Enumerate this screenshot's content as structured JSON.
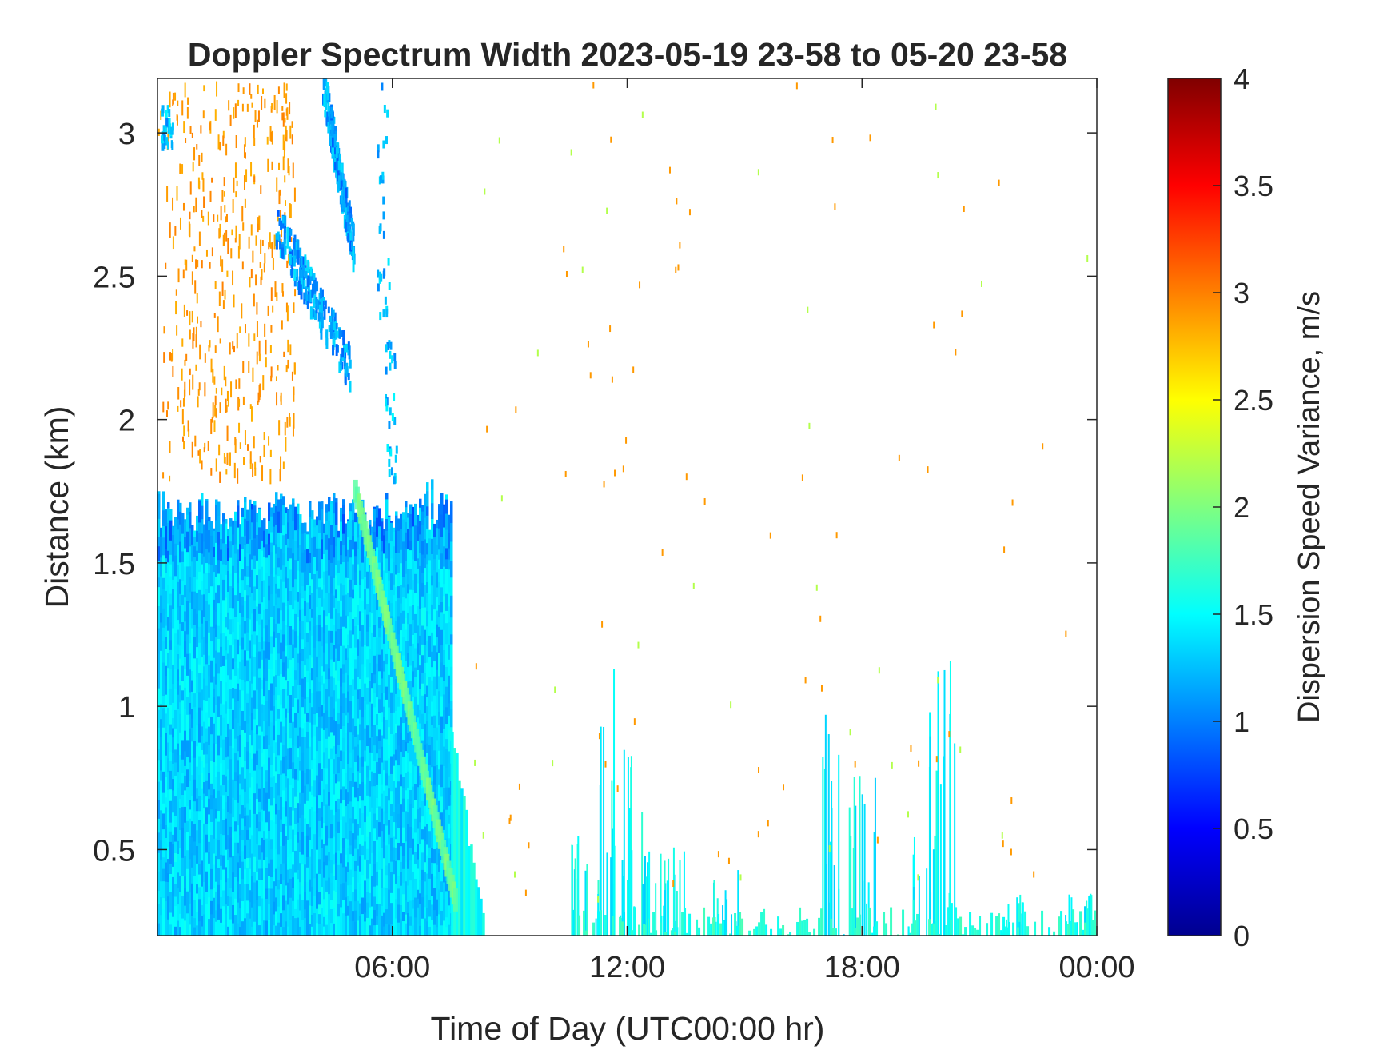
{
  "chart_data": {
    "type": "heatmap",
    "title": "Doppler Spectrum Width 2023-05-19 23-58 to 05-20 23-58",
    "xlabel": "Time of Day (UTC00:00 hr)",
    "ylabel": "Distance (km)",
    "colorbar_label": "Dispersion Speed Variance, m/s",
    "xlim": [
      0,
      24
    ],
    "ylim": [
      0.2,
      3.19
    ],
    "clim": [
      0,
      4
    ],
    "colormap": "jet",
    "grid": false,
    "x_ticks": [
      {
        "value": 6,
        "label": "06:00"
      },
      {
        "value": 12,
        "label": "12:00"
      },
      {
        "value": 18,
        "label": "18:00"
      },
      {
        "value": 24,
        "label": "00:00"
      }
    ],
    "y_ticks": [
      {
        "value": 0.5,
        "label": "0.5"
      },
      {
        "value": 1.0,
        "label": "1"
      },
      {
        "value": 1.5,
        "label": "1.5"
      },
      {
        "value": 2.0,
        "label": "2"
      },
      {
        "value": 2.5,
        "label": "2.5"
      },
      {
        "value": 3.0,
        "label": "3"
      }
    ],
    "colorbar_ticks": [
      {
        "value": 0,
        "label": "0"
      },
      {
        "value": 0.5,
        "label": "0.5"
      },
      {
        "value": 1,
        "label": "1"
      },
      {
        "value": 1.5,
        "label": "1.5"
      },
      {
        "value": 2,
        "label": "2"
      },
      {
        "value": 2.5,
        "label": "2.5"
      },
      {
        "value": 3,
        "label": "3"
      },
      {
        "value": 3.5,
        "label": "3.5"
      },
      {
        "value": 4,
        "label": "4"
      }
    ],
    "regions": [
      {
        "name": "boundary-layer-echo",
        "t_start": 0,
        "t_end": 7.5,
        "z_min": 0.2,
        "z_max": 1.75,
        "value": 1.3
      },
      {
        "name": "boundary-layer-tail",
        "t_start": 7.5,
        "t_end": 8.3,
        "z_min": 0.2,
        "z_max": 0.9,
        "value": 1.4
      },
      {
        "name": "sheared-band",
        "t_start": 5.0,
        "t_end": 7.6,
        "z_top": 1.75,
        "z_bottom": 0.3,
        "value": 1.8
      },
      {
        "name": "upper-speckle",
        "t_start": 0,
        "t_end": 3.5,
        "z_min": 1.8,
        "z_max": 3.19,
        "value": 3.0
      },
      {
        "name": "cloud-streak-1",
        "t_start": 4.2,
        "t_end": 5.0,
        "z_min": 2.6,
        "z_max": 3.19,
        "value": 1.1
      },
      {
        "name": "cloud-streak-2",
        "t_start": 3.0,
        "t_end": 4.9,
        "z_min": 2.2,
        "z_max": 2.7,
        "value": 1.1
      },
      {
        "name": "low-convective-plumes",
        "t_start": 10.5,
        "t_end": 24,
        "z_min": 0.2,
        "z_max": 1.2,
        "value": 1.4
      }
    ]
  }
}
